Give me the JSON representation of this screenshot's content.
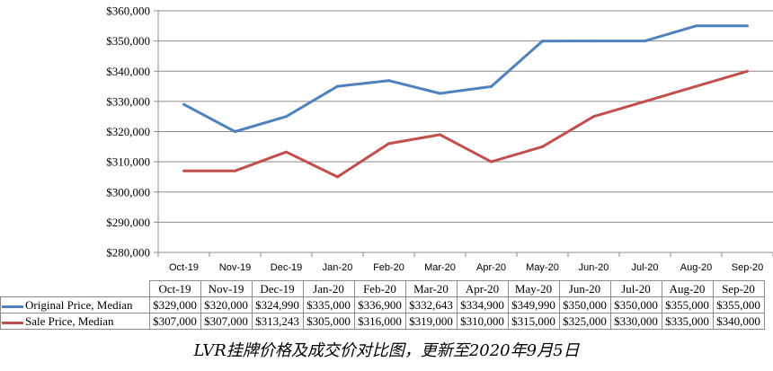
{
  "caption": "LVR挂牌价格及成交价对比图，更新至2020年9月5日",
  "chart_data": {
    "type": "line",
    "categories": [
      "Oct-19",
      "Nov-19",
      "Dec-19",
      "Jan-20",
      "Feb-20",
      "Mar-20",
      "Apr-20",
      "May-20",
      "Jun-20",
      "Jul-20",
      "Aug-20",
      "Sep-20"
    ],
    "ylim": [
      280000,
      360000
    ],
    "ystep": 10000,
    "yticks": [
      "$280,000",
      "$290,000",
      "$300,000",
      "$310,000",
      "$320,000",
      "$330,000",
      "$340,000",
      "$350,000",
      "$360,000"
    ],
    "grid": true,
    "legend": "data-table",
    "series": [
      {
        "name": "Original Price, Median",
        "color": "#4f81bd",
        "values": [
          329000,
          320000,
          324990,
          335000,
          336900,
          332643,
          334900,
          349990,
          350000,
          350000,
          355000,
          355000
        ],
        "labels": [
          "$329,000",
          "$320,000",
          "$324,990",
          "$335,000",
          "$336,900",
          "$332,643",
          "$334,900",
          "$349,990",
          "$350,000",
          "$350,000",
          "$355,000",
          "$355,000"
        ]
      },
      {
        "name": "Sale Price, Median",
        "color": "#c0504d",
        "values": [
          307000,
          307000,
          313243,
          305000,
          316000,
          319000,
          310000,
          315000,
          325000,
          330000,
          335000,
          340000
        ],
        "labels": [
          "$307,000",
          "$307,000",
          "$313,243",
          "$305,000",
          "$316,000",
          "$319,000",
          "$310,000",
          "$315,000",
          "$325,000",
          "$330,000",
          "$335,000",
          "$340,000"
        ]
      }
    ]
  }
}
